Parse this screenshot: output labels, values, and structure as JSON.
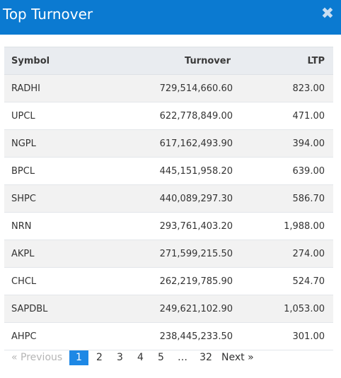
{
  "header": {
    "title": "Top Turnover",
    "close_glyph": "✖"
  },
  "table": {
    "columns": [
      "Symbol",
      "Turnover",
      "LTP"
    ],
    "rows": [
      {
        "symbol": "RADHI",
        "turnover": "729,514,660.60",
        "ltp": "823.00"
      },
      {
        "symbol": "UPCL",
        "turnover": "622,778,849.00",
        "ltp": "471.00"
      },
      {
        "symbol": "NGPL",
        "turnover": "617,162,493.90",
        "ltp": "394.00"
      },
      {
        "symbol": "BPCL",
        "turnover": "445,151,958.20",
        "ltp": "639.00"
      },
      {
        "symbol": "SHPC",
        "turnover": "440,089,297.30",
        "ltp": "586.70"
      },
      {
        "symbol": "NRN",
        "turnover": "293,761,403.20",
        "ltp": "1,988.00"
      },
      {
        "symbol": "AKPL",
        "turnover": "271,599,215.50",
        "ltp": "274.00"
      },
      {
        "symbol": "CHCL",
        "turnover": "262,219,785.90",
        "ltp": "524.70"
      },
      {
        "symbol": "SAPDBL",
        "turnover": "249,621,102.90",
        "ltp": "1,053.00"
      },
      {
        "symbol": "AHPC",
        "turnover": "238,445,233.50",
        "ltp": "301.00"
      }
    ]
  },
  "pagination": {
    "previous": "«   Previous",
    "pages": [
      "1",
      "2",
      "3",
      "4",
      "5"
    ],
    "active_page": "1",
    "ellipsis": "…",
    "last_page": "32",
    "next": "Next   »"
  },
  "colors": {
    "header_bg": "#0b7ad1",
    "active_page_bg": "#1e88e5"
  },
  "icons": {
    "close": "close-icon"
  }
}
